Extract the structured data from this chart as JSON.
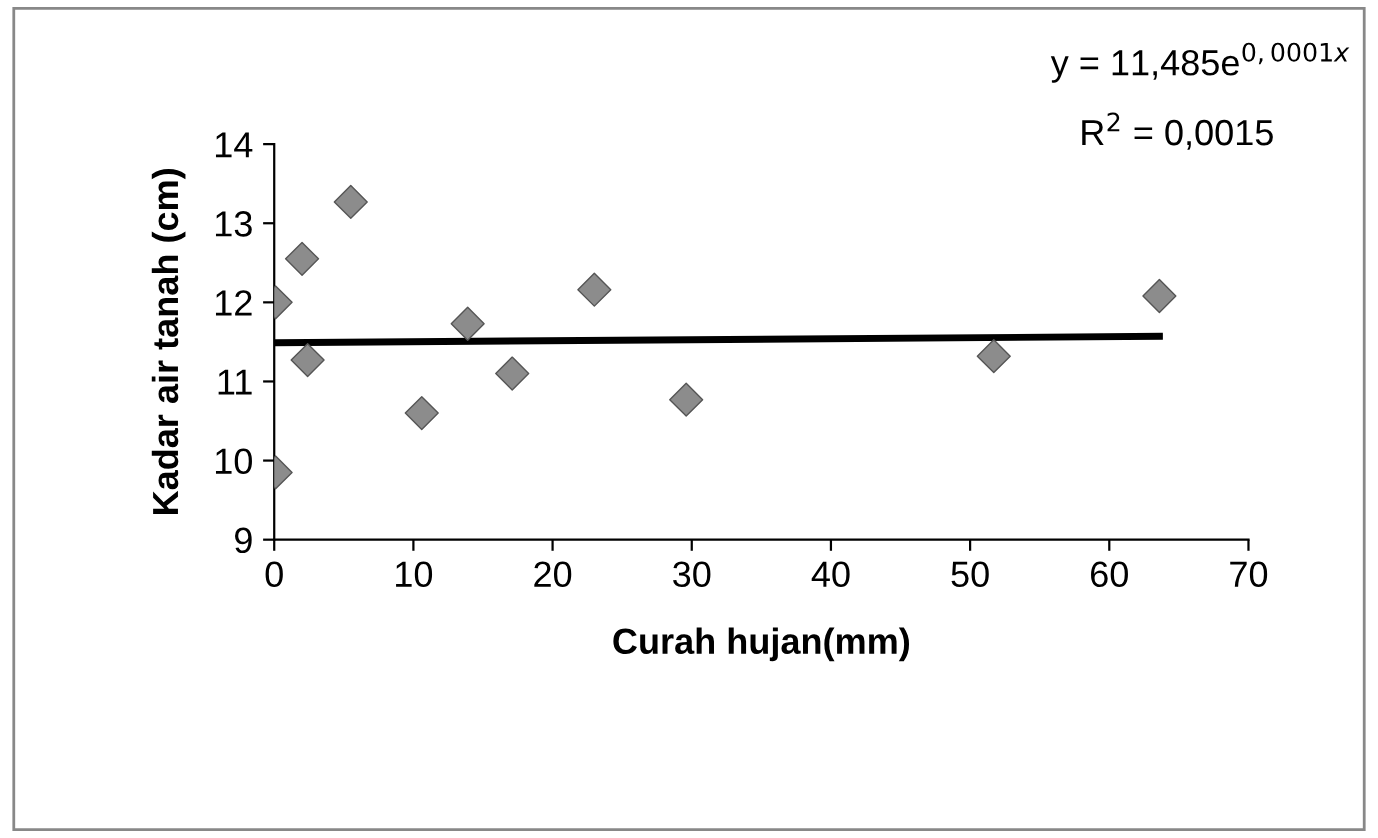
{
  "chart_data": {
    "type": "scatter",
    "xlabel": "Curah hujan(mm)",
    "ylabel": "Kadar air tanah (cm)",
    "xlim": [
      0,
      70
    ],
    "xticks": [
      0,
      10,
      20,
      30,
      40,
      50,
      60,
      70
    ],
    "ylim": [
      9,
      14
    ],
    "yticks": [
      9,
      10,
      11,
      12,
      13,
      14
    ],
    "grid": false,
    "legend": false,
    "marker": "diamond",
    "series": [
      {
        "color": "#8c8c8c",
        "x": [
          0.1,
          0.1,
          2.0,
          2.4,
          5.5,
          10.6,
          13.9,
          17.1,
          23.0,
          29.6,
          51.7,
          63.6
        ],
        "values": [
          12.0,
          9.85,
          12.55,
          11.27,
          13.27,
          10.6,
          11.73,
          11.1,
          12.16,
          10.77,
          11.32,
          12.08
        ]
      },
      {
        "type": "line",
        "color": "#000000",
        "marker": "none",
        "line_style": "solid",
        "x": [
          0,
          63.6
        ],
        "values": [
          11.49,
          11.57
        ]
      }
    ],
    "annotations": [
      "y = 11,485e$^{0,0001x}$",
      "R$^{2}$ = 0,0015"
    ]
  }
}
